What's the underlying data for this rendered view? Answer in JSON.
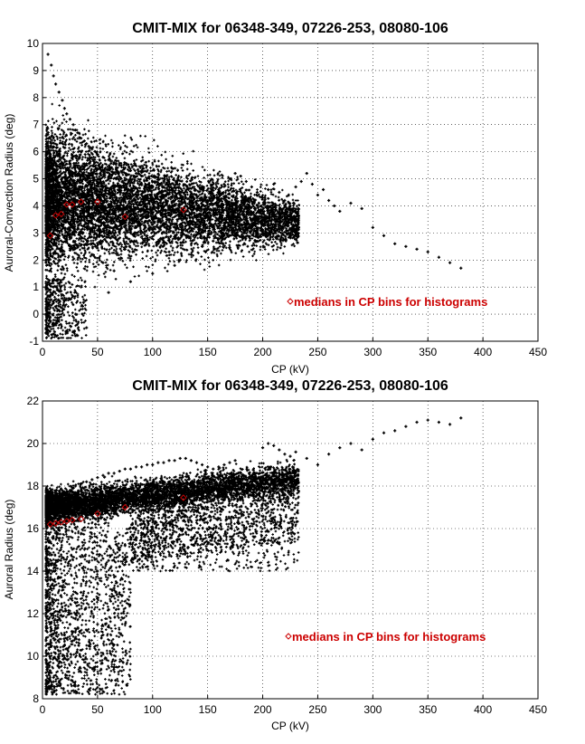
{
  "chart_data": [
    {
      "type": "scatter",
      "title": "CMIT-MIX for 06348-349, 07226-253, 08080-106",
      "xlabel": "CP (kV)",
      "ylabel": "Auroral-Convection Radius (deg)",
      "xlim": [
        0,
        450
      ],
      "ylim": [
        -1,
        10
      ],
      "xticks": [
        0,
        50,
        100,
        150,
        200,
        250,
        300,
        350,
        400,
        450
      ],
      "yticks": [
        -1,
        0,
        1,
        2,
        3,
        4,
        5,
        6,
        7,
        8,
        9,
        10
      ],
      "grid": true,
      "legend": {
        "text": "medians in CP bins for histograms",
        "position": "lower-right",
        "color": "#cc0000"
      },
      "series": [
        {
          "marker": "point",
          "color": "#000000",
          "x": [
            5,
            8,
            10,
            12,
            15,
            18,
            20,
            22,
            25,
            28,
            30,
            32,
            35,
            38,
            40,
            42,
            45,
            48,
            50,
            55,
            60,
            65,
            70,
            75,
            80,
            85,
            90,
            95,
            100,
            105,
            110,
            115,
            120,
            125,
            130,
            135,
            140,
            145,
            150,
            155,
            160,
            165,
            170,
            175,
            180,
            185,
            190,
            195,
            200,
            205,
            210,
            215,
            220,
            225,
            230,
            235,
            240,
            245,
            250,
            255,
            260,
            265,
            270,
            280,
            290,
            300,
            310,
            320,
            330,
            340,
            350,
            360,
            370,
            380,
            10,
            20,
            30,
            40,
            60,
            80,
            100,
            120,
            15,
            25,
            35,
            45,
            55,
            65,
            75,
            85,
            95,
            105,
            115,
            125,
            135,
            145,
            155,
            165,
            175,
            185,
            5,
            15,
            25,
            35,
            45,
            55,
            65,
            75,
            85,
            95,
            105,
            115,
            125,
            135,
            145,
            155,
            165,
            175,
            185,
            195
          ],
          "y": [
            9.6,
            9.2,
            8.8,
            8.5,
            8.2,
            7.9,
            7.6,
            7.4,
            7.2,
            7.0,
            6.8,
            6.7,
            6.5,
            6.4,
            6.3,
            6.2,
            6.1,
            6.0,
            5.9,
            5.8,
            5.7,
            5.6,
            5.5,
            5.4,
            5.3,
            5.2,
            5.1,
            5.0,
            4.9,
            4.8,
            4.7,
            4.6,
            4.5,
            4.4,
            4.3,
            4.2,
            4.1,
            4.0,
            4.2,
            4.4,
            4.6,
            4.8,
            5.0,
            5.2,
            5.1,
            4.9,
            4.7,
            4.5,
            4.3,
            4.6,
            4.8,
            4.5,
            4.2,
            4.0,
            4.7,
            4.9,
            5.2,
            4.8,
            4.4,
            4.6,
            4.2,
            4.0,
            3.8,
            4.1,
            3.9,
            3.2,
            2.9,
            2.6,
            2.5,
            2.4,
            2.3,
            2.1,
            1.9,
            1.7,
            1.0,
            0.5,
            0.0,
            -0.5,
            0.8,
            1.2,
            1.5,
            1.8,
            2.0,
            2.5,
            2.8,
            2.2,
            1.9,
            1.6,
            2.4,
            2.7,
            2.9,
            2.6,
            2.3,
            2.0,
            2.2,
            2.5,
            2.7,
            2.9,
            3.1,
            3.3,
            3.0,
            3.5,
            3.8,
            4.2,
            4.5,
            4.0,
            3.7,
            3.4,
            3.2,
            3.6,
            3.9,
            3.5,
            3.3,
            3.1,
            3.4,
            3.7,
            3.5,
            3.3,
            3.6,
            3.0
          ]
        },
        {
          "name": "medians in CP bins for histograms",
          "marker": "diamond",
          "color": "#cc0000",
          "x": [
            7,
            12,
            17,
            22,
            27,
            35,
            50,
            75,
            128
          ],
          "y": [
            2.9,
            3.65,
            3.7,
            4.05,
            4.05,
            4.15,
            4.15,
            3.6,
            3.85
          ]
        }
      ]
    },
    {
      "type": "scatter",
      "title": "CMIT-MIX for 06348-349, 07226-253, 08080-106",
      "xlabel": "CP (kV)",
      "ylabel": "Auroral Radius (deg)",
      "xlim": [
        0,
        450
      ],
      "ylim": [
        8,
        22
      ],
      "xticks": [
        0,
        50,
        100,
        150,
        200,
        250,
        300,
        350,
        400,
        450
      ],
      "yticks": [
        8,
        10,
        12,
        14,
        16,
        18,
        20,
        22
      ],
      "grid": true,
      "legend": {
        "text": "medians in CP bins for histograms",
        "position": "lower-right",
        "color": "#cc0000"
      },
      "series": [
        {
          "marker": "point",
          "color": "#000000",
          "x": [
            5,
            8,
            10,
            12,
            15,
            18,
            20,
            22,
            25,
            28,
            30,
            35,
            40,
            45,
            50,
            55,
            60,
            65,
            70,
            75,
            80,
            85,
            90,
            95,
            100,
            105,
            110,
            115,
            120,
            125,
            130,
            135,
            140,
            145,
            150,
            155,
            160,
            165,
            170,
            175,
            180,
            185,
            190,
            195,
            200,
            205,
            210,
            215,
            220,
            225,
            230,
            240,
            250,
            260,
            270,
            280,
            290,
            300,
            310,
            320,
            330,
            340,
            350,
            360,
            370,
            380,
            10,
            15,
            20,
            25,
            30,
            40,
            50,
            60,
            70,
            80,
            90,
            100,
            110,
            120,
            130,
            140,
            150,
            160,
            170,
            180,
            5,
            10,
            15,
            20,
            25,
            30,
            35,
            40,
            45,
            50,
            55,
            60,
            65,
            70,
            75,
            80
          ],
          "y": [
            16.5,
            16.8,
            17.0,
            17.2,
            17.4,
            17.5,
            17.6,
            17.7,
            17.8,
            17.9,
            18.0,
            18.1,
            18.2,
            18.3,
            18.4,
            18.5,
            18.6,
            18.6,
            18.7,
            18.8,
            18.8,
            18.9,
            18.9,
            19.0,
            19.0,
            19.1,
            19.1,
            19.2,
            19.2,
            19.3,
            19.3,
            19.2,
            19.1,
            19.0,
            18.9,
            18.8,
            18.9,
            19.0,
            19.1,
            19.2,
            18.6,
            18.4,
            18.2,
            18.0,
            19.8,
            20.0,
            19.9,
            19.7,
            19.5,
            19.4,
            19.6,
            19.3,
            19.0,
            19.5,
            19.8,
            20.0,
            19.7,
            20.2,
            20.5,
            20.6,
            20.8,
            21.0,
            21.1,
            21.0,
            20.9,
            21.2,
            9.0,
            10.0,
            11.0,
            12.0,
            13.0,
            13.5,
            14.0,
            14.5,
            15.0,
            15.5,
            15.8,
            16.0,
            16.2,
            16.4,
            16.6,
            16.8,
            17.0,
            17.2,
            17.3,
            17.4,
            8.5,
            8.8,
            9.5,
            10.5,
            11.5,
            12.5,
            13.0,
            12.8,
            12.0,
            11.5,
            11.0,
            12.2,
            13.2,
            14.2,
            15.2,
            15.6
          ]
        },
        {
          "name": "medians in CP bins for histograms",
          "marker": "diamond",
          "color": "#cc0000",
          "x": [
            7,
            12,
            17,
            22,
            27,
            35,
            50,
            75,
            128
          ],
          "y": [
            16.2,
            16.25,
            16.3,
            16.35,
            16.4,
            16.45,
            16.7,
            17.0,
            17.45
          ]
        }
      ]
    }
  ]
}
